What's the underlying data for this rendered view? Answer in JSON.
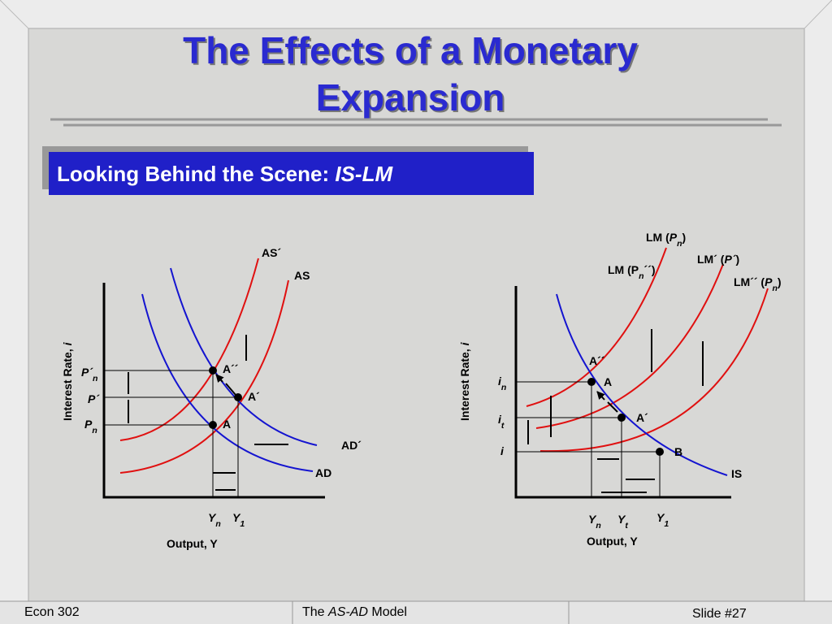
{
  "header": {
    "title": [
      "The Effects of a Monetary",
      "Expansion"
    ],
    "subtitle": [
      {
        "text": "Looking Behind the Scene:  "
      },
      {
        "text": "IS-LM",
        "italic": true
      }
    ]
  },
  "left_diagram": {
    "y_axis": [
      {
        "text": "Interest Rate, "
      },
      {
        "text": "i",
        "italic": true
      }
    ],
    "x_axis": "Output, Y",
    "curves": {
      "as_prime": "AS´",
      "as": "AS",
      "ad_prime": "AD´",
      "ad": "AD"
    },
    "points": {
      "a_double_prime": "A´´",
      "a_prime": "A´",
      "a": "A"
    },
    "y_labels": [
      [
        {
          "text": "P´",
          "italic": true
        },
        {
          "text": "n",
          "italic": true,
          "sub": true
        }
      ],
      [
        {
          "text": "P´",
          "italic": true
        }
      ],
      [
        {
          "text": "P",
          "italic": true
        },
        {
          "text": "n",
          "italic": true,
          "sub": true
        }
      ]
    ],
    "x_labels": [
      [
        {
          "text": "Y",
          "italic": true
        },
        {
          "text": "n",
          "italic": true,
          "sub": true
        }
      ],
      [
        {
          "text": "Y",
          "italic": true
        },
        {
          "text": "1",
          "italic": true,
          "sub": true
        }
      ]
    ]
  },
  "right_diagram": {
    "y_axis": [
      {
        "text": "Interest Rate, "
      },
      {
        "text": "i",
        "italic": true
      }
    ],
    "x_axis": "Output, Y",
    "curves": {
      "lm_pn": [
        {
          "text": "LM ("
        },
        {
          "text": "P",
          "italic": true
        },
        {
          "text": "n",
          "italic": true,
          "sub": true
        },
        {
          "text": ")"
        }
      ],
      "lm_prime": [
        {
          "text": "LM´ ("
        },
        {
          "text": "P´",
          "italic": true
        },
        {
          "text": ")"
        }
      ],
      "lm_pn_double_prime": [
        {
          "text": "LM (P"
        },
        {
          "text": "n",
          "italic": true,
          "sub": true
        },
        {
          "text": "´´)"
        }
      ],
      "lm_double_prime": [
        {
          "text": "LM´´ ("
        },
        {
          "text": "P",
          "italic": true
        },
        {
          "text": "n",
          "italic": true,
          "sub": true
        },
        {
          "text": ")"
        }
      ],
      "is": "IS"
    },
    "points": {
      "a_double_prime": "A´´",
      "a": "A",
      "a_prime": "A´",
      "b": "B"
    },
    "y_labels": [
      [
        {
          "text": "i",
          "italic": true
        },
        {
          "text": "n",
          "italic": true,
          "sub": true
        }
      ],
      [
        {
          "text": "i",
          "italic": true
        },
        {
          "text": "t",
          "italic": true,
          "sub": true
        }
      ],
      [
        {
          "text": "i",
          "italic": true
        }
      ]
    ],
    "x_labels": [
      [
        {
          "text": "Y",
          "italic": true
        },
        {
          "text": "n",
          "italic": true,
          "sub": true
        }
      ],
      [
        {
          "text": "Y",
          "italic": true
        },
        {
          "text": "t",
          "italic": true,
          "sub": true
        }
      ],
      [
        {
          "text": "Y",
          "italic": true
        },
        {
          "text": "1",
          "italic": true,
          "sub": true
        }
      ]
    ]
  },
  "footer": {
    "left": "Econ 302",
    "center": [
      {
        "text": "The "
      },
      {
        "text": "AS-AD",
        "italic": true
      },
      {
        "text": " Model"
      }
    ],
    "right": "Slide #27"
  }
}
